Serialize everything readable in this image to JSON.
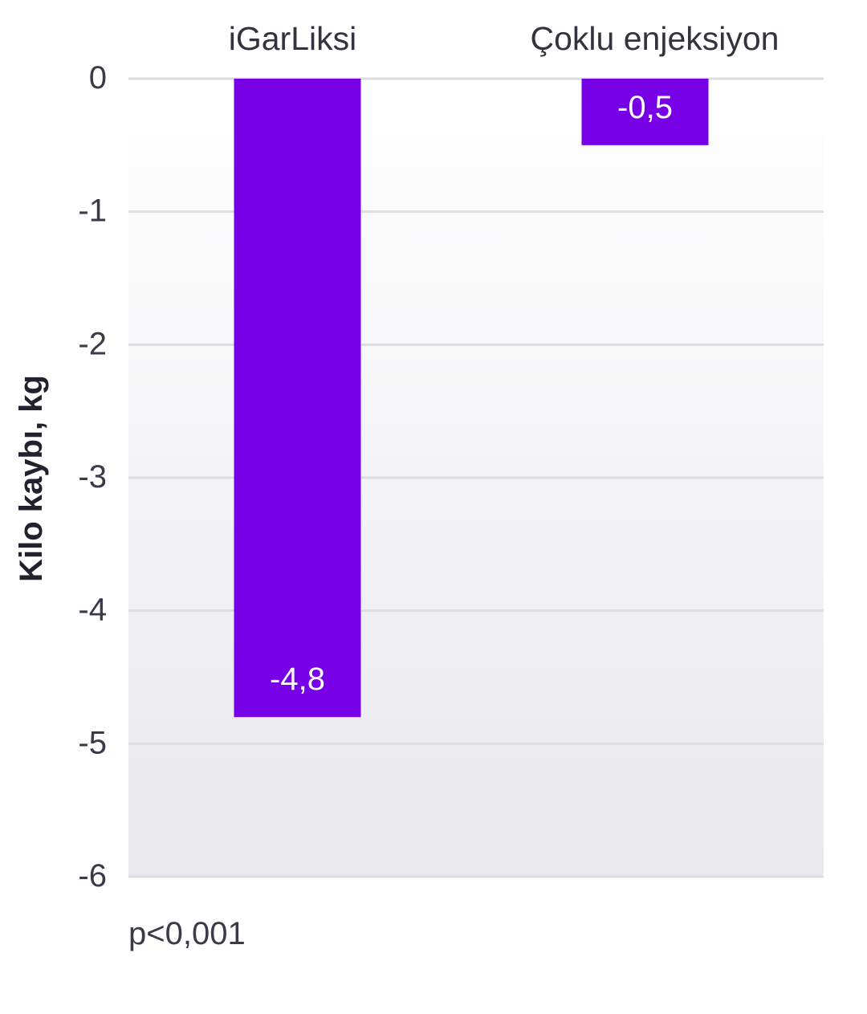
{
  "chart_data": {
    "type": "bar",
    "categories": [
      "iGarLiksi",
      "Çoklu enjeksiyon"
    ],
    "values": [
      -4.8,
      -0.5
    ],
    "value_labels": [
      "-4,8",
      "-0,5"
    ],
    "ylabel": "Kilo kaybı, kg",
    "ylim": [
      -6,
      0
    ],
    "yticks": [
      0,
      -1,
      -2,
      -3,
      -4,
      -5,
      -6
    ],
    "grid": true,
    "category_labels_position": "top",
    "bar_color": "#7700e6",
    "annotation": "p<0,001"
  }
}
